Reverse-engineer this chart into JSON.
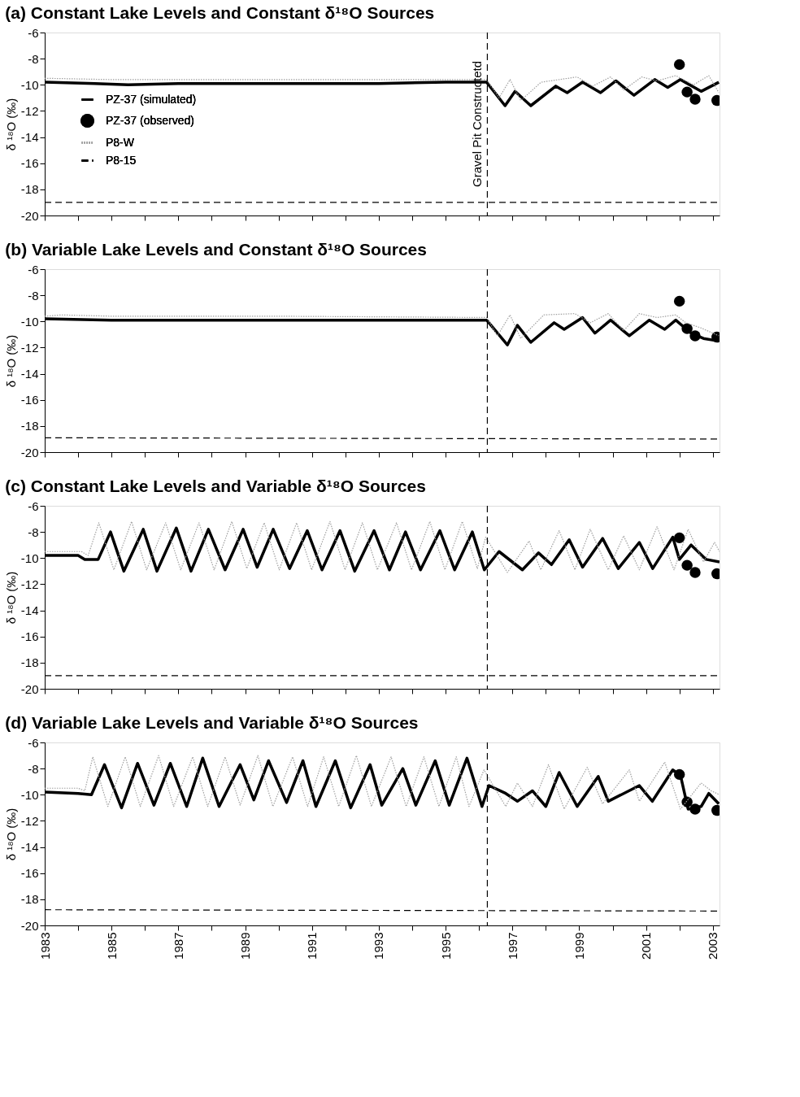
{
  "chart_data": [
    {
      "type": "line",
      "title": "(a)  Constant Lake Levels and Constant δ¹⁸O Sources",
      "ylabel": "δ ¹⁸O (‰)",
      "xlim": [
        1983,
        2003.2
      ],
      "ylim": [
        -20,
        -6
      ],
      "yticks": [
        -20,
        -18,
        -16,
        -14,
        -12,
        -10,
        -8,
        -6
      ],
      "xticks": [
        1983,
        {
          "value": 1984,
          "label": null
        },
        1985,
        {
          "value": 1986,
          "label": null
        },
        1987,
        {
          "value": 1988,
          "label": null
        },
        1989,
        {
          "value": 1990,
          "label": null
        },
        1991,
        {
          "value": 1992,
          "label": null
        },
        1993,
        {
          "value": 1994,
          "label": null
        },
        1995,
        {
          "value": 1996,
          "label": null
        },
        1997,
        {
          "value": 1998,
          "label": null
        },
        1999,
        {
          "value": 2000,
          "label": null
        },
        2001,
        {
          "value": 2002,
          "label": null
        },
        2003
      ],
      "tick_labels": "y",
      "grid": false,
      "legend": "left",
      "ref_lines": [
        {
          "axis": "x",
          "value": 1996.25,
          "label": "Gravel Pit Constructetd",
          "line_style": "dashed",
          "color": "#000000"
        }
      ],
      "series": [
        {
          "name": "PZ-37 (simulated)",
          "type": "line",
          "color": "#000000",
          "line_style": "solid",
          "x": [
            1983,
            1984.5,
            1985.5,
            1987,
            1989,
            1991,
            1993,
            1995,
            1996.23,
            1996.78,
            1997.08,
            1997.55,
            1998.3,
            1998.64,
            1999.1,
            1999.64,
            2000.1,
            2000.64,
            2001.26,
            2001.65,
            2002.03,
            2002.65,
            2003.18
          ],
          "values": [
            -9.8,
            -9.9,
            -10.0,
            -9.9,
            -9.9,
            -9.9,
            -9.9,
            -9.8,
            -9.8,
            -11.6,
            -10.5,
            -11.6,
            -10.1,
            -10.6,
            -9.8,
            -10.6,
            -9.7,
            -10.8,
            -9.6,
            -10.2,
            -9.6,
            -10.5,
            -9.8
          ]
        },
        {
          "name": "PZ-37 (observed)",
          "type": "scatter",
          "color": "#000000",
          "marker": "circle",
          "x": [
            2002.0,
            2002.23,
            2002.47,
            2003.12
          ],
          "values": [
            -8.45,
            -10.55,
            -11.1,
            -11.2
          ]
        },
        {
          "name": "P8-W",
          "type": "line",
          "color": "#a0a0a0",
          "line_style": "dotted",
          "x": [
            1983,
            1985,
            1990,
            1996.23,
            1996.6,
            1996.93,
            1997.25,
            1997.86,
            1998.94,
            1999.4,
            1999.94,
            2000.33,
            2000.87,
            2001.33,
            2001.89,
            2002.42,
            2002.88,
            2003.18
          ],
          "values": [
            -9.5,
            -9.6,
            -9.6,
            -9.6,
            -11.0,
            -9.6,
            -11.2,
            -9.8,
            -9.4,
            -10.1,
            -9.4,
            -10.4,
            -9.4,
            -9.7,
            -9.3,
            -10.0,
            -9.3,
            -10.6
          ]
        },
        {
          "name": "P8-15",
          "type": "line",
          "color": "#000000",
          "line_style": "dashed",
          "x": [
            1983,
            2003.2
          ],
          "values": [
            -19.0,
            -19.0
          ]
        }
      ]
    },
    {
      "type": "line",
      "title": "(b)  Variable Lake Levels and Constant δ¹⁸O Sources",
      "ylabel": "δ ¹⁸O (‰)",
      "xlim": [
        1983,
        2003.2
      ],
      "ylim": [
        -20,
        -6
      ],
      "yticks": [
        -20,
        -18,
        -16,
        -14,
        -12,
        -10,
        -8,
        -6
      ],
      "xticks": [
        1983,
        {
          "value": 1984,
          "label": null
        },
        1985,
        {
          "value": 1986,
          "label": null
        },
        1987,
        {
          "value": 1988,
          "label": null
        },
        1989,
        {
          "value": 1990,
          "label": null
        },
        1991,
        {
          "value": 1992,
          "label": null
        },
        1993,
        {
          "value": 1994,
          "label": null
        },
        1995,
        {
          "value": 1996,
          "label": null
        },
        1997,
        {
          "value": 1998,
          "label": null
        },
        1999,
        {
          "value": 2000,
          "label": null
        },
        2001,
        {
          "value": 2002,
          "label": null
        },
        2003
      ],
      "tick_labels": "y",
      "grid": false,
      "ref_lines": [
        {
          "axis": "x",
          "value": 1996.25,
          "line_style": "dashed",
          "color": "#000000"
        }
      ],
      "series": [
        {
          "type": "line",
          "color": "#000000",
          "line_style": "solid",
          "x": [
            1983,
            1985,
            1990,
            1995,
            1996.23,
            1996.85,
            1997.15,
            1997.55,
            1998.25,
            1998.55,
            1999.1,
            1999.47,
            1999.94,
            2000.5,
            2001.1,
            2001.56,
            2001.89,
            2002.35,
            2002.72,
            2003.18
          ],
          "values": [
            -9.8,
            -9.9,
            -9.9,
            -9.9,
            -9.9,
            -11.8,
            -10.3,
            -11.6,
            -10.1,
            -10.6,
            -9.7,
            -10.9,
            -9.9,
            -11.1,
            -9.9,
            -10.6,
            -9.9,
            -10.9,
            -11.3,
            -11.5
          ]
        },
        {
          "type": "scatter",
          "color": "#000000",
          "marker": "circle",
          "x": [
            2002.0,
            2002.23,
            2002.47,
            2003.12
          ],
          "values": [
            -8.45,
            -10.55,
            -11.1,
            -11.2
          ]
        },
        {
          "type": "line",
          "color": "#a0a0a0",
          "line_style": "dotted",
          "x": [
            1983,
            1983.5,
            1985,
            1990,
            1996.23,
            1996.55,
            1996.93,
            1997.25,
            1997.94,
            1998.87,
            1999.33,
            1999.87,
            2000.33,
            2000.8,
            2001.33,
            2001.89,
            2002.19,
            2002.65,
            2003.18
          ],
          "values": [
            -9.6,
            -9.5,
            -9.6,
            -9.6,
            -9.7,
            -11.1,
            -9.5,
            -11.3,
            -9.5,
            -9.4,
            -10.1,
            -9.4,
            -10.7,
            -9.4,
            -9.7,
            -9.5,
            -10.1,
            -10.5,
            -11.1
          ]
        },
        {
          "type": "line",
          "color": "#000000",
          "line_style": "dashed",
          "x": [
            1983,
            2003.2
          ],
          "values": [
            -18.9,
            -19.0
          ]
        }
      ]
    },
    {
      "type": "line",
      "title": "(c)  Constant Lake Levels and Variable δ¹⁸O Sources",
      "ylabel": "δ ¹⁸O (‰)",
      "xlim": [
        1983,
        2003.2
      ],
      "ylim": [
        -20,
        -6
      ],
      "yticks": [
        -20,
        -18,
        -16,
        -14,
        -12,
        -10,
        -8,
        -6
      ],
      "xticks": [
        1983,
        {
          "value": 1984,
          "label": null
        },
        1985,
        {
          "value": 1986,
          "label": null
        },
        1987,
        {
          "value": 1988,
          "label": null
        },
        1989,
        {
          "value": 1990,
          "label": null
        },
        1991,
        {
          "value": 1992,
          "label": null
        },
        1993,
        {
          "value": 1994,
          "label": null
        },
        1995,
        {
          "value": 1996,
          "label": null
        },
        1997,
        {
          "value": 1998,
          "label": null
        },
        1999,
        {
          "value": 2000,
          "label": null
        },
        2001,
        {
          "value": 2002,
          "label": null
        },
        2003
      ],
      "tick_labels": "y",
      "grid": false,
      "ref_lines": [
        {
          "axis": "x",
          "value": 1996.25,
          "line_style": "dashed",
          "color": "#000000"
        }
      ],
      "series": [
        {
          "type": "line",
          "color": "#000000",
          "line_style": "solid",
          "x": [
            1983,
            1984.0,
            1984.2,
            1984.6,
            1984.97,
            1985.37,
            1985.95,
            1986.36,
            1986.94,
            1987.38,
            1987.9,
            1988.4,
            1988.94,
            1989.36,
            1989.84,
            1990.33,
            1990.86,
            1991.3,
            1991.84,
            1992.28,
            1992.86,
            1993.32,
            1993.8,
            1994.25,
            1994.83,
            1995.27,
            1995.8,
            1996.16,
            1996.6,
            1997.3,
            1997.78,
            1998.17,
            1998.7,
            1999.1,
            1999.7,
            2000.17,
            2000.8,
            2001.2,
            2001.8,
            2002.0,
            2002.35,
            2002.8,
            2003.2
          ],
          "values": [
            -9.8,
            -9.8,
            -10.1,
            -10.1,
            -8.0,
            -11.0,
            -7.8,
            -11.0,
            -7.7,
            -11.0,
            -7.8,
            -10.9,
            -7.8,
            -10.7,
            -7.8,
            -10.8,
            -7.9,
            -10.9,
            -7.9,
            -11.0,
            -7.9,
            -10.9,
            -8.0,
            -10.9,
            -7.9,
            -10.9,
            -8.0,
            -10.9,
            -9.5,
            -10.9,
            -9.6,
            -10.5,
            -8.6,
            -10.7,
            -8.5,
            -10.8,
            -8.8,
            -10.8,
            -8.4,
            -10.1,
            -9.0,
            -10.1,
            -10.3
          ]
        },
        {
          "type": "scatter",
          "color": "#000000",
          "marker": "circle",
          "x": [
            2002.0,
            2002.23,
            2002.47,
            2003.12
          ],
          "values": [
            -8.45,
            -10.55,
            -11.1,
            -11.2
          ]
        },
        {
          "type": "line",
          "color": "#a0a0a0",
          "line_style": "dotted",
          "x": [
            1983,
            1984.1,
            1984.3,
            1984.62,
            1985.07,
            1985.6,
            1986.05,
            1986.62,
            1987.07,
            1987.62,
            1988.07,
            1988.6,
            1989.05,
            1989.57,
            1990.02,
            1990.54,
            1990.99,
            1991.54,
            1991.99,
            1992.51,
            1992.96,
            1993.53,
            1993.98,
            1994.53,
            1994.98,
            1995.5,
            1995.95,
            1996.2,
            1996.85,
            1997.5,
            1997.85,
            1998.4,
            1998.87,
            1999.33,
            1999.87,
            2000.33,
            2000.8,
            2001.33,
            2001.84,
            2002.26,
            2002.72,
            2003.05,
            2003.2
          ],
          "values": [
            -9.5,
            -9.5,
            -9.8,
            -7.3,
            -10.9,
            -7.2,
            -10.9,
            -7.3,
            -10.9,
            -7.3,
            -10.9,
            -7.2,
            -10.8,
            -7.3,
            -10.9,
            -7.3,
            -10.9,
            -7.2,
            -10.9,
            -7.3,
            -10.9,
            -7.3,
            -10.9,
            -7.2,
            -10.9,
            -7.2,
            -10.8,
            -8.4,
            -11.1,
            -8.7,
            -10.9,
            -7.9,
            -10.9,
            -7.8,
            -10.9,
            -8.3,
            -10.9,
            -7.6,
            -10.9,
            -7.8,
            -10.3,
            -8.8,
            -9.5
          ]
        },
        {
          "type": "line",
          "color": "#000000",
          "line_style": "dashed",
          "x": [
            1983,
            2003.2
          ],
          "values": [
            -19.0,
            -19.0
          ]
        }
      ]
    },
    {
      "type": "line",
      "title": "(d)  Variable Lake Levels and Variable δ¹⁸O Sources",
      "ylabel": "δ ¹⁸O (‰)",
      "xlim": [
        1983,
        2003.2
      ],
      "ylim": [
        -20,
        -6
      ],
      "yticks": [
        -20,
        -18,
        -16,
        -14,
        -12,
        -10,
        -8,
        -6
      ],
      "xticks": [
        1983,
        {
          "value": 1984,
          "label": null
        },
        1985,
        {
          "value": 1986,
          "label": null
        },
        1987,
        {
          "value": 1988,
          "label": null
        },
        1989,
        {
          "value": 1990,
          "label": null
        },
        1991,
        {
          "value": 1992,
          "label": null
        },
        1993,
        {
          "value": 1994,
          "label": null
        },
        1995,
        {
          "value": 1996,
          "label": null
        },
        1997,
        {
          "value": 1998,
          "label": null
        },
        1999,
        {
          "value": 2000,
          "label": null
        },
        2001,
        {
          "value": 2002,
          "label": null
        },
        2003
      ],
      "grid": false,
      "ref_lines": [
        {
          "axis": "x",
          "value": 1996.25,
          "line_style": "dashed",
          "color": "#000000"
        }
      ],
      "series": [
        {
          "type": "line",
          "color": "#000000",
          "line_style": "solid",
          "x": [
            1983,
            1984.0,
            1984.4,
            1984.79,
            1985.3,
            1985.78,
            1986.27,
            1986.76,
            1987.25,
            1987.73,
            1988.22,
            1988.85,
            1989.26,
            1989.7,
            1990.24,
            1990.73,
            1991.12,
            1991.7,
            1992.16,
            1992.74,
            1993.09,
            1993.72,
            1994.11,
            1994.69,
            1995.11,
            1995.64,
            1996.09,
            1996.3,
            1996.8,
            1997.15,
            1997.6,
            1998.0,
            1998.4,
            1998.94,
            1999.57,
            1999.87,
            2000.8,
            2001.19,
            2001.8,
            2002.03,
            2002.26,
            2002.65,
            2002.88,
            2003.18
          ],
          "values": [
            -9.8,
            -9.9,
            -10.0,
            -7.7,
            -11.0,
            -7.6,
            -10.8,
            -7.6,
            -10.9,
            -7.2,
            -10.9,
            -7.7,
            -10.4,
            -7.4,
            -10.6,
            -7.4,
            -10.9,
            -7.4,
            -11.0,
            -7.7,
            -10.8,
            -8.0,
            -10.8,
            -7.4,
            -10.8,
            -7.2,
            -10.9,
            -9.3,
            -9.9,
            -10.5,
            -9.7,
            -10.9,
            -8.3,
            -10.9,
            -8.6,
            -10.5,
            -9.3,
            -10.5,
            -8.1,
            -8.5,
            -11.1,
            -10.9,
            -9.9,
            -10.7
          ]
        },
        {
          "type": "scatter",
          "color": "#000000",
          "marker": "circle",
          "x": [
            2002.0,
            2002.23,
            2002.47,
            2003.12
          ],
          "values": [
            -8.45,
            -10.55,
            -11.1,
            -11.2
          ]
        },
        {
          "type": "line",
          "color": "#a0a0a0",
          "line_style": "dotted",
          "x": [
            1983,
            1984.0,
            1984.2,
            1984.44,
            1984.89,
            1985.41,
            1985.86,
            1986.41,
            1986.86,
            1987.43,
            1987.88,
            1988.4,
            1988.85,
            1989.38,
            1989.83,
            1990.42,
            1990.87,
            1991.35,
            1991.8,
            1992.33,
            1992.78,
            1993.37,
            1993.82,
            1994.35,
            1994.8,
            1995.32,
            1995.7,
            1996.15,
            1996.8,
            1997.15,
            1997.6,
            1998.08,
            1998.55,
            1999.24,
            1999.7,
            2000.5,
            2000.8,
            2001.56,
            2002.03,
            2002.65,
            2002.95,
            2003.2
          ],
          "values": [
            -9.5,
            -9.5,
            -9.7,
            -7.1,
            -10.9,
            -7.1,
            -10.9,
            -7.0,
            -10.9,
            -7.1,
            -10.9,
            -7.1,
            -10.8,
            -7.0,
            -10.9,
            -7.1,
            -10.9,
            -7.1,
            -10.9,
            -7.0,
            -10.9,
            -7.1,
            -10.9,
            -7.1,
            -10.9,
            -7.1,
            -10.9,
            -8.1,
            -10.9,
            -9.1,
            -10.9,
            -7.7,
            -11.1,
            -7.9,
            -10.7,
            -8.1,
            -10.5,
            -7.5,
            -11.1,
            -9.1,
            -9.7,
            -10.0
          ]
        },
        {
          "type": "line",
          "color": "#000000",
          "line_style": "dashed",
          "x": [
            1983,
            2003.2
          ],
          "values": [
            -18.8,
            -18.9
          ]
        }
      ]
    }
  ]
}
